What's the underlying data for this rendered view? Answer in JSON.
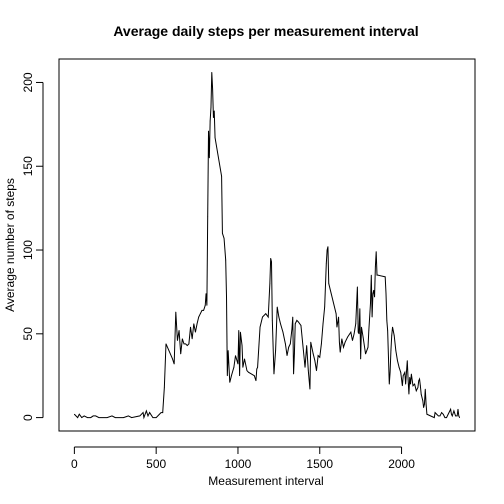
{
  "chart_data": {
    "type": "line",
    "title": "Average daily steps per measurement interval",
    "xlabel": "Measurement interval",
    "ylabel": "Average number of steps",
    "xlim": [
      -94,
      2449
    ],
    "ylim": [
      -8,
      214
    ],
    "xticks": [
      0,
      500,
      1000,
      1500,
      2000
    ],
    "yticks": [
      0,
      50,
      100,
      150,
      200
    ],
    "grid": false,
    "line_color": "#000000",
    "series": [
      {
        "points": [
          [
            0,
            2
          ],
          [
            20,
            0
          ],
          [
            30,
            2
          ],
          [
            45,
            0
          ],
          [
            60,
            1
          ],
          [
            80,
            0
          ],
          [
            100,
            0
          ],
          [
            115,
            1
          ],
          [
            130,
            1
          ],
          [
            150,
            0
          ],
          [
            200,
            0
          ],
          [
            230,
            1
          ],
          [
            250,
            0
          ],
          [
            300,
            0
          ],
          [
            330,
            1
          ],
          [
            350,
            0
          ],
          [
            400,
            1
          ],
          [
            420,
            3
          ],
          [
            425,
            0
          ],
          [
            440,
            4
          ],
          [
            450,
            1
          ],
          [
            460,
            3
          ],
          [
            480,
            0
          ],
          [
            500,
            0
          ],
          [
            520,
            2
          ],
          [
            530,
            3
          ],
          [
            540,
            3
          ],
          [
            550,
            18
          ],
          [
            560,
            44
          ],
          [
            600,
            35
          ],
          [
            610,
            32
          ],
          [
            620,
            63
          ],
          [
            630,
            46
          ],
          [
            640,
            52
          ],
          [
            650,
            38
          ],
          [
            660,
            47
          ],
          [
            670,
            44
          ],
          [
            680,
            44
          ],
          [
            690,
            43
          ],
          [
            700,
            44
          ],
          [
            710,
            54
          ],
          [
            720,
            47
          ],
          [
            730,
            56
          ],
          [
            740,
            51
          ],
          [
            750,
            56
          ],
          [
            760,
            60
          ],
          [
            770,
            62
          ],
          [
            780,
            64
          ],
          [
            790,
            64
          ],
          [
            800,
            67
          ],
          [
            805,
            74
          ],
          [
            810,
            67
          ],
          [
            815,
            120
          ],
          [
            820,
            171
          ],
          [
            825,
            155
          ],
          [
            830,
            177
          ],
          [
            835,
            185
          ],
          [
            840,
            206
          ],
          [
            845,
            196
          ],
          [
            850,
            179
          ],
          [
            855,
            183
          ],
          [
            860,
            167
          ],
          [
            900,
            144
          ],
          [
            905,
            110
          ],
          [
            915,
            107
          ],
          [
            925,
            94
          ],
          [
            930,
            72
          ],
          [
            935,
            25
          ],
          [
            940,
            40
          ],
          [
            950,
            21
          ],
          [
            960,
            25
          ],
          [
            975,
            30
          ],
          [
            985,
            37
          ],
          [
            1000,
            32
          ],
          [
            1005,
            52
          ],
          [
            1010,
            25
          ],
          [
            1015,
            51
          ],
          [
            1025,
            43
          ],
          [
            1030,
            30
          ],
          [
            1040,
            35
          ],
          [
            1055,
            28
          ],
          [
            1065,
            27
          ],
          [
            1100,
            25
          ],
          [
            1110,
            22
          ],
          [
            1115,
            29
          ],
          [
            1120,
            30
          ],
          [
            1135,
            54
          ],
          [
            1150,
            60
          ],
          [
            1170,
            62
          ],
          [
            1185,
            60
          ],
          [
            1195,
            80
          ],
          [
            1200,
            95
          ],
          [
            1205,
            93
          ],
          [
            1210,
            58
          ],
          [
            1220,
            26
          ],
          [
            1230,
            40
          ],
          [
            1240,
            66
          ],
          [
            1250,
            60
          ],
          [
            1260,
            56
          ],
          [
            1275,
            51
          ],
          [
            1290,
            44
          ],
          [
            1300,
            37
          ],
          [
            1310,
            42
          ],
          [
            1320,
            44
          ],
          [
            1330,
            53
          ],
          [
            1335,
            60
          ],
          [
            1340,
            26
          ],
          [
            1345,
            38
          ],
          [
            1350,
            56
          ],
          [
            1360,
            58
          ],
          [
            1370,
            57
          ],
          [
            1385,
            55
          ],
          [
            1400,
            40
          ],
          [
            1410,
            30
          ],
          [
            1420,
            43
          ],
          [
            1430,
            28
          ],
          [
            1440,
            17
          ],
          [
            1445,
            45
          ],
          [
            1460,
            38
          ],
          [
            1470,
            34
          ],
          [
            1480,
            28
          ],
          [
            1490,
            37
          ],
          [
            1500,
            36
          ],
          [
            1510,
            44
          ],
          [
            1520,
            56
          ],
          [
            1530,
            66
          ],
          [
            1540,
            92
          ],
          [
            1545,
            100
          ],
          [
            1550,
            102
          ],
          [
            1555,
            80
          ],
          [
            1600,
            62
          ],
          [
            1605,
            54
          ],
          [
            1615,
            60
          ],
          [
            1620,
            45
          ],
          [
            1625,
            39
          ],
          [
            1635,
            47
          ],
          [
            1645,
            42
          ],
          [
            1655,
            45
          ],
          [
            1670,
            48
          ],
          [
            1690,
            51
          ],
          [
            1700,
            46
          ],
          [
            1710,
            50
          ],
          [
            1720,
            56
          ],
          [
            1730,
            78
          ],
          [
            1735,
            51
          ],
          [
            1740,
            50
          ],
          [
            1745,
            65
          ],
          [
            1750,
            35
          ],
          [
            1755,
            54
          ],
          [
            1765,
            48
          ],
          [
            1780,
            38
          ],
          [
            1795,
            42
          ],
          [
            1800,
            52
          ],
          [
            1810,
            68
          ],
          [
            1815,
            85
          ],
          [
            1820,
            60
          ],
          [
            1825,
            74
          ],
          [
            1830,
            76
          ],
          [
            1835,
            72
          ],
          [
            1840,
            90
          ],
          [
            1845,
            99
          ],
          [
            1850,
            85
          ],
          [
            1855,
            85
          ],
          [
            1900,
            84
          ],
          [
            1905,
            74
          ],
          [
            1910,
            58
          ],
          [
            1915,
            52
          ],
          [
            1920,
            36
          ],
          [
            1925,
            20
          ],
          [
            1930,
            27
          ],
          [
            1935,
            40
          ],
          [
            1940,
            49
          ],
          [
            1945,
            54
          ],
          [
            1955,
            49
          ],
          [
            1965,
            40
          ],
          [
            1975,
            34
          ],
          [
            1985,
            30
          ],
          [
            1995,
            27
          ],
          [
            2005,
            19
          ],
          [
            2010,
            25
          ],
          [
            2020,
            27
          ],
          [
            2025,
            20
          ],
          [
            2035,
            34
          ],
          [
            2040,
            23
          ],
          [
            2045,
            14
          ],
          [
            2050,
            24
          ],
          [
            2055,
            20
          ],
          [
            2060,
            26
          ],
          [
            2070,
            19
          ],
          [
            2080,
            20
          ],
          [
            2090,
            16
          ],
          [
            2100,
            18
          ],
          [
            2105,
            22
          ],
          [
            2110,
            23
          ],
          [
            2115,
            19
          ],
          [
            2120,
            14
          ],
          [
            2125,
            12
          ],
          [
            2130,
            10
          ],
          [
            2135,
            6
          ],
          [
            2140,
            8
          ],
          [
            2145,
            17
          ],
          [
            2150,
            8
          ],
          [
            2155,
            2
          ],
          [
            2200,
            0
          ],
          [
            2205,
            3
          ],
          [
            2215,
            2
          ],
          [
            2225,
            1
          ],
          [
            2235,
            1
          ],
          [
            2245,
            3
          ],
          [
            2255,
            2
          ],
          [
            2265,
            0
          ],
          [
            2275,
            0
          ],
          [
            2285,
            2
          ],
          [
            2300,
            5
          ],
          [
            2305,
            2
          ],
          [
            2310,
            1
          ],
          [
            2320,
            4
          ],
          [
            2330,
            1
          ],
          [
            2340,
            1
          ],
          [
            2345,
            5
          ],
          [
            2350,
            1
          ],
          [
            2355,
            0
          ]
        ]
      }
    ]
  }
}
